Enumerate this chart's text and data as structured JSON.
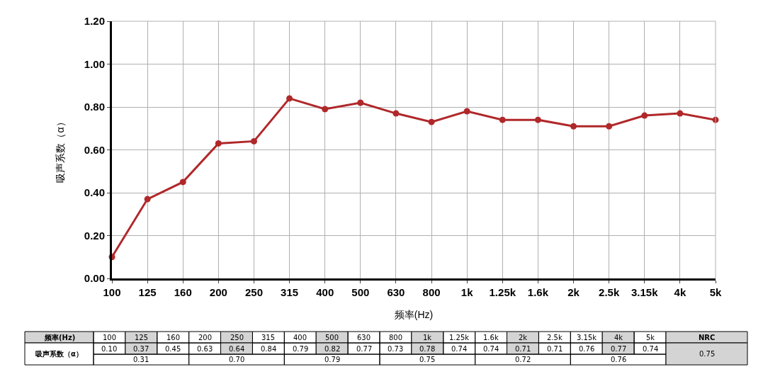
{
  "chart_data": {
    "type": "line",
    "xlabel": "频率(Hz)",
    "ylabel": "吸声系数（α）",
    "categories": [
      "100",
      "125",
      "160",
      "200",
      "250",
      "315",
      "400",
      "500",
      "630",
      "800",
      "1k",
      "1.25k",
      "1.6k",
      "2k",
      "2.5k",
      "3.15k",
      "4k",
      "5k"
    ],
    "series": [
      {
        "color": "#b0282a",
        "values": [
          0.1,
          0.37,
          0.45,
          0.63,
          0.64,
          0.84,
          0.79,
          0.82,
          0.77,
          0.73,
          0.78,
          0.74,
          0.74,
          0.71,
          0.71,
          0.76,
          0.77,
          0.74
        ]
      }
    ],
    "ylim": [
      0,
      1.2
    ],
    "yticks": [
      {
        "value": 0,
        "label": "0.00"
      },
      {
        "value": 0.2,
        "label": "0.20"
      },
      {
        "value": 0.4,
        "label": "0.40"
      },
      {
        "value": 0.6,
        "label": "0.60"
      },
      {
        "value": 0.8,
        "label": "0.80"
      },
      {
        "value": 1.0,
        "label": "1.00"
      },
      {
        "value": 1.2,
        "label": "1.20"
      }
    ],
    "grid": true,
    "marker": "circle",
    "line_style": "solid",
    "legend": false,
    "annotations": [
      "0.10",
      "0.37",
      "0.45",
      "0.63",
      "0.64",
      "0.84",
      "0.79",
      "0.82",
      "0.77",
      "0.73",
      "0.78",
      "0.74",
      "0.74",
      "0.71",
      "0.71",
      "0.76",
      "0.77",
      "0.74",
      "0.31",
      "0.70",
      "0.79",
      "0.75",
      "0.72",
      "0.76",
      "NRC",
      "0.75"
    ]
  }
}
